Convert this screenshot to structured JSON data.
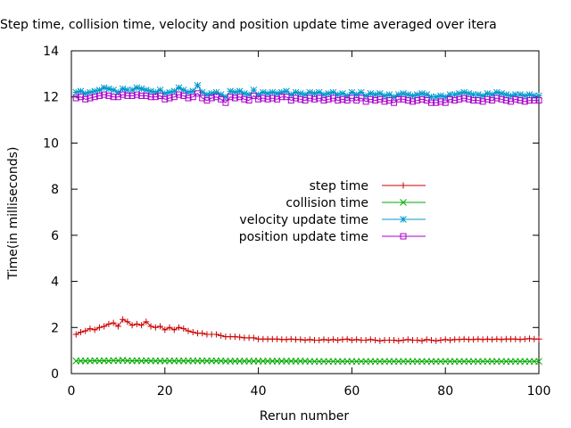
{
  "chart_data": {
    "type": "line",
    "title": "Step time, collision time, velocity and position update time averaged over itera",
    "xlabel": "Rerun number",
    "ylabel": "Time(in milliseconds)",
    "xlim": [
      0,
      100
    ],
    "ylim": [
      0,
      14
    ],
    "xticks": [
      0,
      20,
      40,
      60,
      80,
      100
    ],
    "yticks": [
      0,
      2,
      4,
      6,
      8,
      10,
      12,
      14
    ],
    "grid": false,
    "legend_position": "center",
    "x": [
      1,
      2,
      3,
      4,
      5,
      6,
      7,
      8,
      9,
      10,
      11,
      12,
      13,
      14,
      15,
      16,
      17,
      18,
      19,
      20,
      21,
      22,
      23,
      24,
      25,
      26,
      27,
      28,
      29,
      30,
      31,
      32,
      33,
      34,
      35,
      36,
      37,
      38,
      39,
      40,
      41,
      42,
      43,
      44,
      45,
      46,
      47,
      48,
      49,
      50,
      51,
      52,
      53,
      54,
      55,
      56,
      57,
      58,
      59,
      60,
      61,
      62,
      63,
      64,
      65,
      66,
      67,
      68,
      69,
      70,
      71,
      72,
      73,
      74,
      75,
      76,
      77,
      78,
      79,
      80,
      81,
      82,
      83,
      84,
      85,
      86,
      87,
      88,
      89,
      90,
      91,
      92,
      93,
      94,
      95,
      96,
      97,
      98,
      99,
      100
    ],
    "series": [
      {
        "name": "step time",
        "color": "#cc0000",
        "marker": "plus",
        "values": [
          1.7,
          1.8,
          1.85,
          1.95,
          1.9,
          2.0,
          2.05,
          2.15,
          2.2,
          2.05,
          2.35,
          2.25,
          2.1,
          2.15,
          2.1,
          2.25,
          2.05,
          2.0,
          2.05,
          1.9,
          2.0,
          1.9,
          2.0,
          1.95,
          1.85,
          1.8,
          1.75,
          1.75,
          1.7,
          1.7,
          1.7,
          1.65,
          1.6,
          1.6,
          1.6,
          1.58,
          1.55,
          1.55,
          1.55,
          1.5,
          1.5,
          1.5,
          1.5,
          1.5,
          1.48,
          1.48,
          1.5,
          1.48,
          1.48,
          1.45,
          1.48,
          1.45,
          1.45,
          1.48,
          1.45,
          1.48,
          1.45,
          1.48,
          1.5,
          1.45,
          1.48,
          1.45,
          1.45,
          1.48,
          1.45,
          1.42,
          1.45,
          1.45,
          1.45,
          1.42,
          1.45,
          1.48,
          1.45,
          1.45,
          1.42,
          1.48,
          1.45,
          1.42,
          1.45,
          1.48,
          1.45,
          1.48,
          1.48,
          1.5,
          1.48,
          1.48,
          1.5,
          1.48,
          1.5,
          1.48,
          1.5,
          1.48,
          1.5,
          1.5,
          1.5,
          1.48,
          1.5,
          1.52,
          1.5,
          1.5
        ]
      },
      {
        "name": "collision time",
        "color": "#00aa00",
        "marker": "cross",
        "values": [
          0.55,
          0.55,
          0.55,
          0.55,
          0.56,
          0.55,
          0.56,
          0.55,
          0.57,
          0.56,
          0.58,
          0.56,
          0.55,
          0.56,
          0.55,
          0.56,
          0.55,
          0.55,
          0.55,
          0.55,
          0.55,
          0.55,
          0.55,
          0.55,
          0.55,
          0.55,
          0.55,
          0.55,
          0.55,
          0.55,
          0.55,
          0.55,
          0.54,
          0.54,
          0.54,
          0.54,
          0.54,
          0.54,
          0.54,
          0.54,
          0.54,
          0.54,
          0.54,
          0.54,
          0.54,
          0.54,
          0.54,
          0.54,
          0.54,
          0.54,
          0.53,
          0.53,
          0.53,
          0.53,
          0.53,
          0.53,
          0.53,
          0.53,
          0.53,
          0.53,
          0.53,
          0.53,
          0.53,
          0.53,
          0.53,
          0.53,
          0.53,
          0.53,
          0.53,
          0.53,
          0.53,
          0.53,
          0.53,
          0.53,
          0.53,
          0.53,
          0.53,
          0.53,
          0.53,
          0.53,
          0.53,
          0.53,
          0.53,
          0.53,
          0.53,
          0.53,
          0.53,
          0.53,
          0.53,
          0.53,
          0.53,
          0.53,
          0.53,
          0.53,
          0.53,
          0.53,
          0.53,
          0.53,
          0.53,
          0.53
        ]
      },
      {
        "name": "velocity update time",
        "color": "#0099cc",
        "marker": "star",
        "values": [
          12.2,
          12.25,
          12.15,
          12.2,
          12.25,
          12.3,
          12.4,
          12.35,
          12.3,
          12.2,
          12.35,
          12.3,
          12.3,
          12.4,
          12.35,
          12.3,
          12.25,
          12.2,
          12.3,
          12.15,
          12.2,
          12.25,
          12.4,
          12.3,
          12.2,
          12.25,
          12.5,
          12.2,
          12.1,
          12.15,
          12.2,
          12.1,
          12.0,
          12.25,
          12.2,
          12.25,
          12.15,
          12.1,
          12.3,
          12.1,
          12.2,
          12.15,
          12.2,
          12.15,
          12.2,
          12.25,
          12.1,
          12.2,
          12.15,
          12.1,
          12.2,
          12.15,
          12.2,
          12.1,
          12.15,
          12.2,
          12.1,
          12.15,
          12.05,
          12.2,
          12.1,
          12.2,
          12.05,
          12.15,
          12.1,
          12.15,
          12.05,
          12.1,
          12.0,
          12.1,
          12.15,
          12.1,
          12.05,
          12.1,
          12.15,
          12.1,
          12.0,
          12.0,
          12.05,
          12.0,
          12.1,
          12.1,
          12.15,
          12.2,
          12.15,
          12.1,
          12.1,
          12.05,
          12.15,
          12.1,
          12.2,
          12.15,
          12.1,
          12.05,
          12.1,
          12.1,
          12.05,
          12.1,
          12.05,
          12.05
        ]
      },
      {
        "name": "position update time",
        "color": "#aa00cc",
        "marker": "square",
        "values": [
          11.95,
          12.0,
          11.9,
          11.95,
          12.0,
          12.05,
          12.1,
          12.05,
          12.0,
          12.0,
          12.1,
          12.05,
          12.05,
          12.1,
          12.05,
          12.05,
          12.0,
          12.0,
          12.05,
          11.9,
          11.95,
          12.0,
          12.1,
          12.05,
          11.95,
          12.0,
          12.15,
          11.95,
          11.85,
          11.95,
          12.0,
          11.9,
          11.75,
          12.0,
          11.95,
          12.0,
          11.9,
          11.85,
          12.05,
          11.9,
          11.95,
          11.9,
          11.95,
          11.9,
          12.0,
          12.0,
          11.85,
          11.95,
          11.9,
          11.85,
          11.95,
          11.9,
          11.95,
          11.85,
          11.9,
          11.95,
          11.85,
          11.9,
          11.85,
          11.95,
          11.85,
          11.95,
          11.8,
          11.9,
          11.85,
          11.9,
          11.8,
          11.85,
          11.75,
          11.9,
          11.9,
          11.85,
          11.8,
          11.85,
          11.9,
          11.85,
          11.75,
          11.75,
          11.8,
          11.75,
          11.9,
          11.85,
          11.9,
          11.95,
          11.9,
          11.85,
          11.85,
          11.8,
          11.9,
          11.85,
          11.95,
          11.9,
          11.85,
          11.8,
          11.9,
          11.85,
          11.8,
          11.85,
          11.85,
          11.85
        ]
      }
    ]
  }
}
